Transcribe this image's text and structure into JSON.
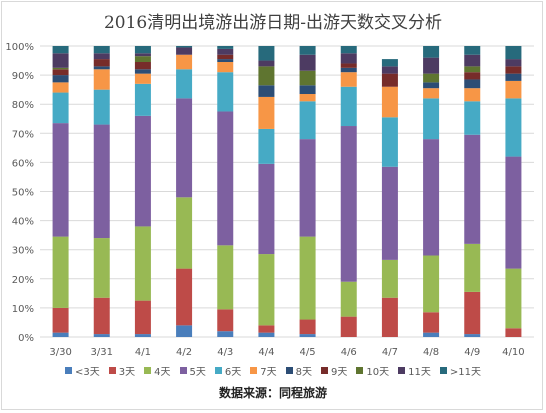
{
  "chart_data": {
    "type": "stacked-bar-100",
    "title": "2016清明出境游出游日期-出游天数交叉分析",
    "categories": [
      "3/30",
      "3/31",
      "4/1",
      "4/2",
      "4/3",
      "4/4",
      "4/5",
      "4/6",
      "4/7",
      "4/8",
      "4/9",
      "4/10"
    ],
    "ylim": [
      0,
      100
    ],
    "ytick_labels": [
      "0%",
      "10%",
      "20%",
      "30%",
      "40%",
      "50%",
      "60%",
      "70%",
      "80%",
      "90%",
      "100%"
    ],
    "grid": true,
    "legend_position": "bottom",
    "series": [
      {
        "name": "<3天",
        "color": "#4a7ebb",
        "values": [
          1.5,
          1,
          1,
          4,
          2,
          1.5,
          1,
          0,
          0,
          1.5,
          1,
          0
        ]
      },
      {
        "name": "3天",
        "color": "#be4b48",
        "values": [
          8.5,
          12.5,
          11.5,
          19.5,
          7.5,
          2.5,
          5,
          7,
          13.5,
          7,
          14.5,
          3
        ]
      },
      {
        "name": "4天",
        "color": "#98b954",
        "values": [
          24.5,
          20.5,
          25.5,
          24.5,
          22,
          24.5,
          28.5,
          12,
          13,
          19.5,
          16.5,
          20.5
        ]
      },
      {
        "name": "5天",
        "color": "#7d60a0",
        "values": [
          39,
          39,
          38,
          34,
          46,
          31,
          33.5,
          53.5,
          32,
          40,
          37.5,
          38.5
        ]
      },
      {
        "name": "6天",
        "color": "#46aac5",
        "values": [
          10.5,
          12,
          11,
          10,
          13.5,
          12,
          13,
          13.5,
          17,
          14,
          11.5,
          20
        ]
      },
      {
        "name": "7天",
        "color": "#f79646",
        "values": [
          3.5,
          7,
          3.5,
          5,
          3.5,
          11,
          2.5,
          5,
          10.5,
          3.5,
          4.5,
          6
        ]
      },
      {
        "name": "8天",
        "color": "#2c4d75",
        "values": [
          2.5,
          1,
          1.5,
          0,
          1,
          4,
          3,
          1.5,
          0,
          2,
          3,
          2.5
        ]
      },
      {
        "name": "9天",
        "color": "#772c2a",
        "values": [
          2,
          2.5,
          2.5,
          0,
          1.5,
          0,
          0,
          1.5,
          4.5,
          0,
          2.5,
          2.5
        ]
      },
      {
        "name": "10天",
        "color": "#5f7530",
        "values": [
          0.5,
          0,
          2,
          0,
          0,
          6.5,
          5,
          0,
          0,
          3,
          2,
          0
        ]
      },
      {
        "name": "11天",
        "color": "#4d3b62",
        "values": [
          5,
          2,
          1,
          2.5,
          2,
          2,
          5.5,
          3.5,
          2.5,
          5.5,
          4,
          2.5
        ]
      },
      {
        "name": ">11天",
        "color": "#276a7c",
        "values": [
          2.5,
          2.5,
          2.5,
          0.5,
          1,
          5,
          3,
          2.5,
          2.5,
          4,
          3,
          4.5
        ]
      }
    ]
  },
  "footer": {
    "source": "数据来源：同程旅游"
  },
  "colors": {
    "grid": "#d9d9d9",
    "axis_text": "#595959",
    "background": "#ffffff"
  }
}
